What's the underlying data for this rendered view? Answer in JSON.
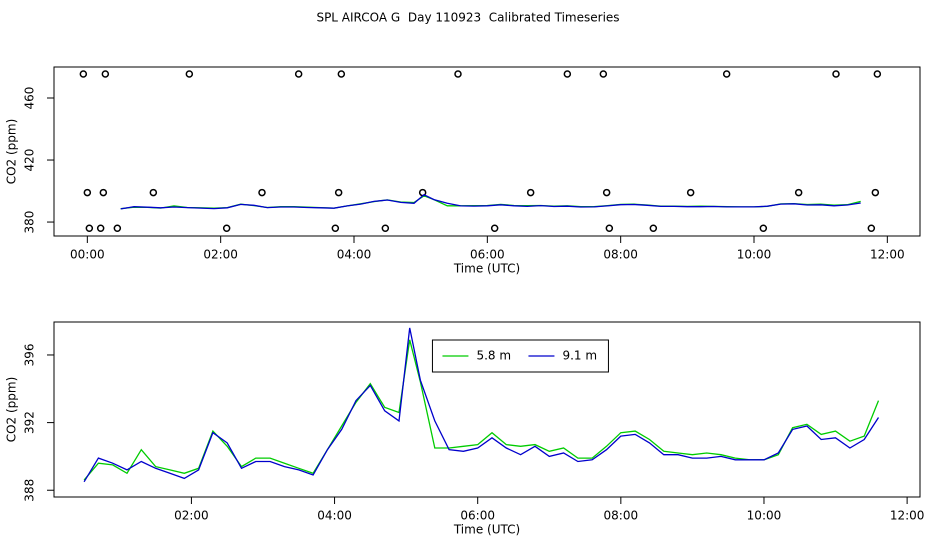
{
  "title": "SPL AIRCOA G  Day 110923  Calibrated Timeseries",
  "chart_data": [
    {
      "type": "line",
      "xlabel": "Time (UTC)",
      "ylabel": "CO2 (ppm)",
      "xlim": [
        -0.5,
        12.49
      ],
      "ylim": [
        371,
        480
      ],
      "xticks": [
        {
          "value": 0,
          "label": "00:00"
        },
        {
          "value": 2,
          "label": "02:00"
        },
        {
          "value": 4,
          "label": "04:00"
        },
        {
          "value": 6,
          "label": "06:00"
        },
        {
          "value": 8,
          "label": "08:00"
        },
        {
          "value": 10,
          "label": "10:00"
        },
        {
          "value": 12,
          "label": "12:00"
        }
      ],
      "yticks": [
        380,
        420,
        460
      ],
      "legend": false,
      "x": [
        0.5,
        0.7,
        0.9,
        1.1,
        1.3,
        1.5,
        1.7,
        1.9,
        2.1,
        2.3,
        2.5,
        2.7,
        2.9,
        3.1,
        3.3,
        3.5,
        3.7,
        3.9,
        4.1,
        4.3,
        4.5,
        4.7,
        4.9,
        5.05,
        5.2,
        5.4,
        5.6,
        5.8,
        6.0,
        6.2,
        6.4,
        6.6,
        6.8,
        7.0,
        7.2,
        7.4,
        7.6,
        7.8,
        8.0,
        8.2,
        8.4,
        8.6,
        8.8,
        9.0,
        9.2,
        9.4,
        9.6,
        9.8,
        10.0,
        10.2,
        10.4,
        10.6,
        10.8,
        11.0,
        11.2,
        11.4,
        11.6
      ],
      "series": [
        {
          "style": "points",
          "color": "#000000",
          "x": [
            -0.06,
            0.27,
            1.53,
            3.17,
            3.81,
            5.56,
            7.2,
            7.74,
            9.59,
            11.23,
            11.85,
            0,
            0.24,
            0.99,
            2.62,
            3.77,
            5.03,
            6.65,
            7.79,
            9.05,
            10.67,
            11.82,
            0.03,
            0.2,
            0.45,
            2.09,
            3.72,
            4.47,
            6.11,
            7.83,
            8.49,
            10.14,
            11.76
          ],
          "values": [
            475.5,
            475.5,
            475.5,
            475.5,
            475.5,
            475.5,
            475.5,
            475.5,
            475.5,
            475.5,
            475.5,
            399,
            399,
            399,
            399,
            399,
            399,
            399,
            399,
            399,
            399,
            399,
            376,
            376,
            376,
            376,
            376,
            376,
            376,
            376,
            376,
            376,
            376
          ]
        },
        {
          "style": "line",
          "color": "#00cc00",
          "values": [
            388.6,
            389.6,
            389.5,
            389.0,
            390.4,
            389.4,
            389.2,
            389.0,
            389.3,
            391.5,
            390.6,
            389.4,
            389.9,
            389.9,
            389.6,
            389.3,
            389.0,
            390.4,
            391.8,
            393.2,
            394.3,
            392.9,
            392.6,
            396.9,
            394.4,
            390.5,
            390.5,
            390.6,
            390.7,
            391.4,
            390.7,
            390.6,
            390.7,
            390.3,
            390.5,
            389.9,
            389.9,
            390.6,
            391.4,
            391.5,
            391.0,
            390.3,
            390.2,
            390.1,
            390.2,
            390.1,
            389.9,
            389.8,
            389.8,
            390.1,
            391.7,
            391.9,
            391.3,
            391.5,
            390.9,
            391.2,
            393.3
          ]
        },
        {
          "style": "line",
          "color": "#0000cc",
          "values": [
            388.5,
            389.9,
            389.6,
            389.2,
            389.7,
            389.3,
            389.0,
            388.7,
            389.2,
            391.4,
            390.8,
            389.3,
            389.7,
            389.7,
            389.4,
            389.2,
            388.9,
            390.4,
            391.6,
            393.3,
            394.2,
            392.7,
            392.1,
            397.6,
            394.5,
            392.1,
            390.4,
            390.3,
            390.5,
            391.1,
            390.5,
            390.1,
            390.6,
            390.0,
            390.2,
            389.7,
            389.8,
            390.4,
            391.2,
            391.3,
            390.8,
            390.1,
            390.1,
            389.9,
            389.9,
            390.0,
            389.8,
            389.8,
            389.8,
            390.2,
            391.6,
            391.8,
            391.0,
            391.1,
            390.5,
            391.0,
            392.3
          ]
        }
      ]
    },
    {
      "type": "line",
      "xlabel": "Time (UTC)",
      "ylabel": "CO2 (ppm)",
      "xlim": [
        0.08,
        12.18
      ],
      "ylim": [
        387.6,
        397.95
      ],
      "xticks": [
        {
          "value": 2,
          "label": "02:00"
        },
        {
          "value": 4,
          "label": "04:00"
        },
        {
          "value": 6,
          "label": "06:00"
        },
        {
          "value": 8,
          "label": "08:00"
        },
        {
          "value": 10,
          "label": "10:00"
        },
        {
          "value": 12,
          "label": "12:00"
        }
      ],
      "yticks": [
        388,
        392,
        396
      ],
      "legend": "top",
      "x": [
        0.5,
        0.7,
        0.9,
        1.1,
        1.3,
        1.5,
        1.7,
        1.9,
        2.1,
        2.3,
        2.5,
        2.7,
        2.9,
        3.1,
        3.3,
        3.5,
        3.7,
        3.9,
        4.1,
        4.3,
        4.5,
        4.7,
        4.9,
        5.05,
        5.2,
        5.4,
        5.6,
        5.8,
        6.0,
        6.2,
        6.4,
        6.6,
        6.8,
        7.0,
        7.2,
        7.4,
        7.6,
        7.8,
        8.0,
        8.2,
        8.4,
        8.6,
        8.8,
        9.0,
        9.2,
        9.4,
        9.6,
        9.8,
        10.0,
        10.2,
        10.4,
        10.6,
        10.8,
        11.0,
        11.2,
        11.4,
        11.6
      ],
      "series": [
        {
          "name": "5.8 m",
          "style": "line",
          "color": "#00cc00",
          "values": [
            388.6,
            389.6,
            389.5,
            389.0,
            390.4,
            389.4,
            389.2,
            389.0,
            389.3,
            391.5,
            390.6,
            389.4,
            389.9,
            389.9,
            389.6,
            389.3,
            389.0,
            390.4,
            391.8,
            393.2,
            394.3,
            392.9,
            392.6,
            396.9,
            394.4,
            390.5,
            390.5,
            390.6,
            390.7,
            391.4,
            390.7,
            390.6,
            390.7,
            390.3,
            390.5,
            389.9,
            389.9,
            390.6,
            391.4,
            391.5,
            391.0,
            390.3,
            390.2,
            390.1,
            390.2,
            390.1,
            389.9,
            389.8,
            389.8,
            390.1,
            391.7,
            391.9,
            391.3,
            391.5,
            390.9,
            391.2,
            393.3
          ]
        },
        {
          "name": "9.1 m",
          "style": "line",
          "color": "#0000cc",
          "values": [
            388.5,
            389.9,
            389.6,
            389.2,
            389.7,
            389.3,
            389.0,
            388.7,
            389.2,
            391.4,
            390.8,
            389.3,
            389.7,
            389.7,
            389.4,
            389.2,
            388.9,
            390.4,
            391.6,
            393.3,
            394.2,
            392.7,
            392.1,
            397.6,
            394.5,
            392.1,
            390.4,
            390.3,
            390.5,
            391.1,
            390.5,
            390.1,
            390.6,
            390.0,
            390.2,
            389.7,
            389.8,
            390.4,
            391.2,
            391.3,
            390.8,
            390.1,
            390.1,
            389.9,
            389.9,
            390.0,
            389.8,
            389.8,
            389.8,
            390.2,
            391.6,
            391.8,
            391.0,
            391.1,
            390.5,
            391.0,
            392.3
          ]
        }
      ]
    }
  ]
}
